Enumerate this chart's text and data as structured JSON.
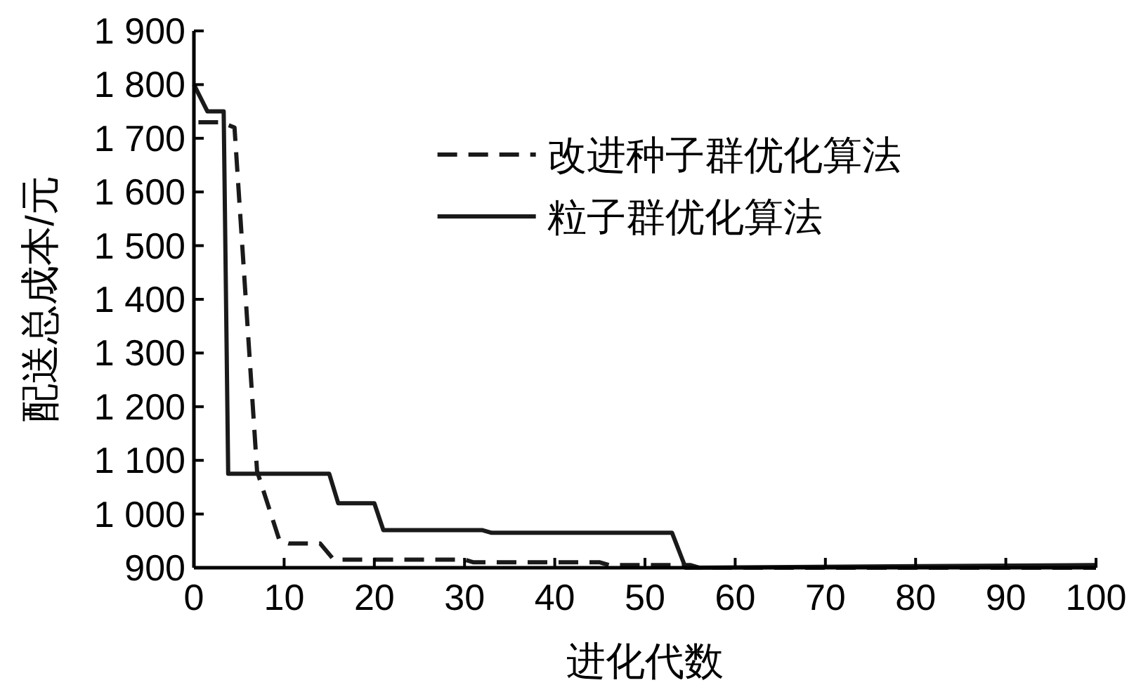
{
  "chart_data": {
    "type": "line",
    "xlabel": "进化代数",
    "ylabel": "配送总成本/元",
    "xlim": [
      0,
      100
    ],
    "xticks": [
      0,
      10,
      20,
      30,
      40,
      50,
      60,
      70,
      80,
      90,
      100
    ],
    "ylim": [
      900,
      1900
    ],
    "yticks": [
      {
        "value": 900,
        "label": "900"
      },
      {
        "value": 1000,
        "label": "1 000"
      },
      {
        "value": 1100,
        "label": "1 100"
      },
      {
        "value": 1200,
        "label": "1 200"
      },
      {
        "value": 1300,
        "label": "1 300"
      },
      {
        "value": 1400,
        "label": "1 400"
      },
      {
        "value": 1500,
        "label": "1 500"
      },
      {
        "value": 1600,
        "label": "1 600"
      },
      {
        "value": 1700,
        "label": "1 700"
      },
      {
        "value": 1800,
        "label": "1 800"
      },
      {
        "value": 1900,
        "label": "1 900"
      }
    ],
    "legend": "top right",
    "grid": false,
    "marker": "none",
    "series": [
      {
        "name": "改进种子群优化算法",
        "color": "#1a1a1a",
        "line_style": "dashed",
        "x": [
          0.5,
          3,
          4.5,
          7,
          9.5,
          10.5,
          14,
          15.5,
          30,
          31,
          45,
          46,
          55,
          56,
          100
        ],
        "values": [
          1730,
          1730,
          1720,
          1080,
          950,
          945,
          945,
          915,
          915,
          910,
          910,
          905,
          905,
          900,
          900
        ]
      },
      {
        "name": "粒子群优化算法",
        "color": "#1a1a1a",
        "line_style": "solid",
        "x": [
          0,
          1.5,
          3.3,
          3.8,
          15,
          16,
          20,
          21,
          32,
          33,
          53,
          54.5,
          100
        ],
        "values": [
          1800,
          1750,
          1750,
          1075,
          1075,
          1020,
          1020,
          970,
          970,
          965,
          965,
          900,
          905
        ]
      }
    ]
  }
}
